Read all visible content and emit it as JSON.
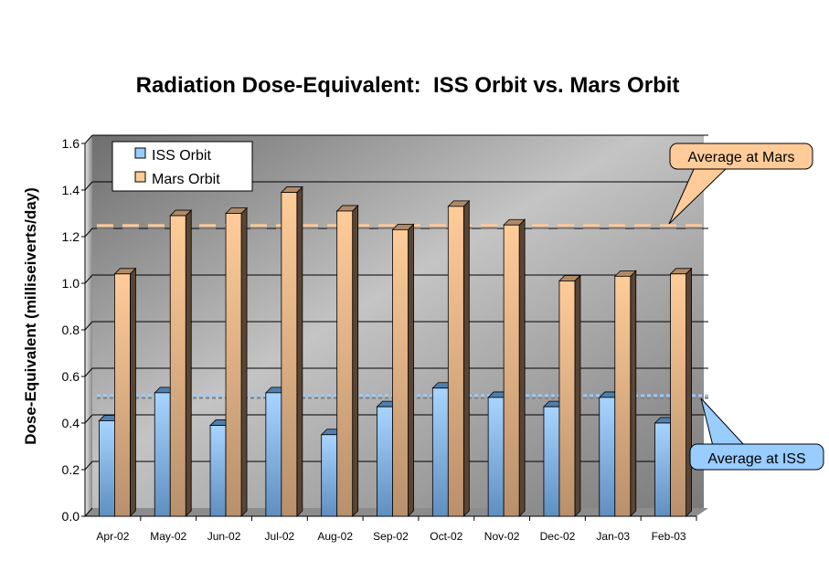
{
  "chart_data": {
    "type": "bar",
    "title": "Radiation Dose-Equivalent:  ISS Orbit vs. Mars Orbit",
    "xlabel": "",
    "ylabel": "Dose-Equivalent (milliseiverts/day)",
    "ylim": [
      0,
      1.6
    ],
    "yticks": [
      "0.0",
      "0.2",
      "0.4",
      "0.6",
      "0.8",
      "1.0",
      "1.2",
      "1.4",
      "1.6"
    ],
    "grid": true,
    "legend_placement": "top-left",
    "categories": [
      "Apr-02",
      "May-02",
      "Jun-02",
      "Jul-02",
      "Aug-02",
      "Sep-02",
      "Oct-02",
      "Nov-02",
      "Dec-02",
      "Jan-03",
      "Feb-03"
    ],
    "series": [
      {
        "name": "ISS Orbit",
        "color": "#99ccff",
        "values": [
          0.41,
          0.53,
          0.39,
          0.53,
          0.35,
          0.47,
          0.55,
          0.51,
          0.47,
          0.51,
          0.4
        ]
      },
      {
        "name": "Mars Orbit",
        "color": "#ffcc99",
        "values": [
          1.04,
          1.29,
          1.3,
          1.39,
          1.31,
          1.23,
          1.33,
          1.25,
          1.01,
          1.03,
          1.04
        ]
      }
    ],
    "reference_lines": [
      {
        "label": "Average at Mars",
        "value": 1.23,
        "color": "#ffcc99",
        "style": "dashed"
      },
      {
        "label": "Average at ISS",
        "value": 0.5,
        "color": "#99ccff",
        "style": "dotted"
      }
    ]
  }
}
